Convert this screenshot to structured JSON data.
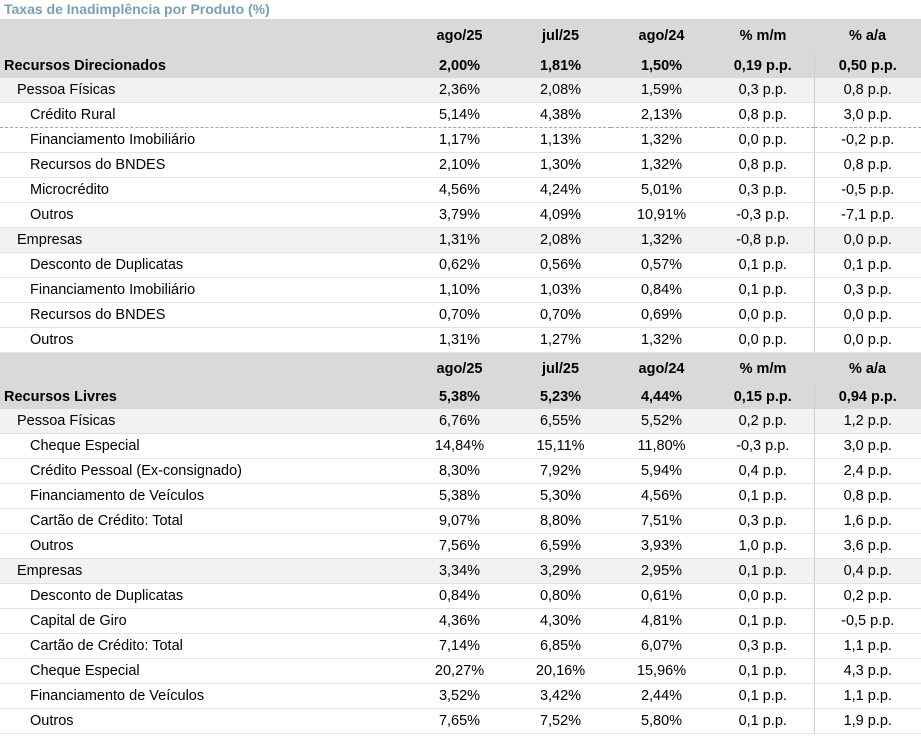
{
  "title": "Taxas de Inadimplência por Produto (%)",
  "columns": [
    "ago/25",
    "jul/25",
    "ago/24",
    "% m/m",
    "% a/a"
  ],
  "blocks": [
    {
      "section": {
        "label": "Recursos Direcionados",
        "values": [
          "2,00%",
          "1,81%",
          "1,50%",
          "0,19 p.p.",
          "0,50 p.p."
        ]
      },
      "groups": [
        {
          "label": "Pessoa Físicas",
          "values": [
            "2,36%",
            "2,08%",
            "1,59%",
            "0,3 p.p.",
            "0,8 p.p."
          ],
          "items": [
            {
              "label": "Crédito Rural",
              "values": [
                "5,14%",
                "4,38%",
                "2,13%",
                "0,8 p.p.",
                "3,0 p.p."
              ],
              "highlight": true
            },
            {
              "label": "Financiamento Imobiliário",
              "values": [
                "1,17%",
                "1,13%",
                "1,32%",
                "0,0 p.p.",
                "-0,2 p.p."
              ]
            },
            {
              "label": "Recursos do BNDES",
              "values": [
                "2,10%",
                "1,30%",
                "1,32%",
                "0,8 p.p.",
                "0,8 p.p."
              ]
            },
            {
              "label": "Microcrédito",
              "values": [
                "4,56%",
                "4,24%",
                "5,01%",
                "0,3 p.p.",
                "-0,5 p.p."
              ]
            },
            {
              "label": "Outros",
              "values": [
                "3,79%",
                "4,09%",
                "10,91%",
                "-0,3 p.p.",
                "-7,1 p.p."
              ]
            }
          ]
        },
        {
          "label": "Empresas",
          "values": [
            "1,31%",
            "2,08%",
            "1,32%",
            "-0,8 p.p.",
            "0,0 p.p."
          ],
          "items": [
            {
              "label": "Desconto de Duplicatas",
              "values": [
                "0,62%",
                "0,56%",
                "0,57%",
                "0,1 p.p.",
                "0,1 p.p."
              ]
            },
            {
              "label": "Financiamento Imobiliário",
              "values": [
                "1,10%",
                "1,03%",
                "0,84%",
                "0,1 p.p.",
                "0,3 p.p."
              ]
            },
            {
              "label": "Recursos do BNDES",
              "values": [
                "0,70%",
                "0,70%",
                "0,69%",
                "0,0 p.p.",
                "0,0 p.p."
              ]
            },
            {
              "label": "Outros",
              "values": [
                "1,31%",
                "1,27%",
                "1,32%",
                "0,0 p.p.",
                "0,0 p.p."
              ]
            }
          ]
        }
      ]
    },
    {
      "section": {
        "label": "Recursos Livres",
        "values": [
          "5,38%",
          "5,23%",
          "4,44%",
          "0,15 p.p.",
          "0,94 p.p."
        ]
      },
      "groups": [
        {
          "label": "Pessoa Físicas",
          "values": [
            "6,76%",
            "6,55%",
            "5,52%",
            "0,2 p.p.",
            "1,2 p.p."
          ],
          "items": [
            {
              "label": "Cheque Especial",
              "values": [
                "14,84%",
                "15,11%",
                "11,80%",
                "-0,3 p.p.",
                "3,0 p.p."
              ]
            },
            {
              "label": "Crédito Pessoal (Ex-consignado)",
              "values": [
                "8,30%",
                "7,92%",
                "5,94%",
                "0,4 p.p.",
                "2,4 p.p."
              ]
            },
            {
              "label": "Financiamento de Veículos",
              "values": [
                "5,38%",
                "5,30%",
                "4,56%",
                "0,1 p.p.",
                "0,8 p.p."
              ]
            },
            {
              "label": "Cartão de Crédito: Total",
              "values": [
                "9,07%",
                "8,80%",
                "7,51%",
                "0,3 p.p.",
                "1,6 p.p."
              ]
            },
            {
              "label": "Outros",
              "values": [
                "7,56%",
                "6,59%",
                "3,93%",
                "1,0 p.p.",
                "3,6 p.p."
              ]
            }
          ]
        },
        {
          "label": "Empresas",
          "values": [
            "3,34%",
            "3,29%",
            "2,95%",
            "0,1 p.p.",
            "0,4 p.p."
          ],
          "items": [
            {
              "label": "Desconto de Duplicatas",
              "values": [
                "0,84%",
                "0,80%",
                "0,61%",
                "0,0 p.p.",
                "0,2 p.p."
              ]
            },
            {
              "label": "Capital de Giro",
              "values": [
                "4,36%",
                "4,30%",
                "4,81%",
                "0,1 p.p.",
                "-0,5 p.p."
              ]
            },
            {
              "label": "Cartão de Crédito: Total",
              "values": [
                "7,14%",
                "6,85%",
                "6,07%",
                "0,3 p.p.",
                "1,1 p.p."
              ]
            },
            {
              "label": "Cheque Especial",
              "values": [
                "20,27%",
                "20,16%",
                "15,96%",
                "0,1 p.p.",
                "4,3 p.p."
              ]
            },
            {
              "label": "Financiamento de Veículos",
              "values": [
                "3,52%",
                "3,42%",
                "2,44%",
                "0,1 p.p.",
                "1,1 p.p."
              ]
            },
            {
              "label": "Outros",
              "values": [
                "7,65%",
                "7,52%",
                "5,80%",
                "0,1 p.p.",
                "1,9 p.p."
              ]
            }
          ]
        }
      ]
    }
  ]
}
